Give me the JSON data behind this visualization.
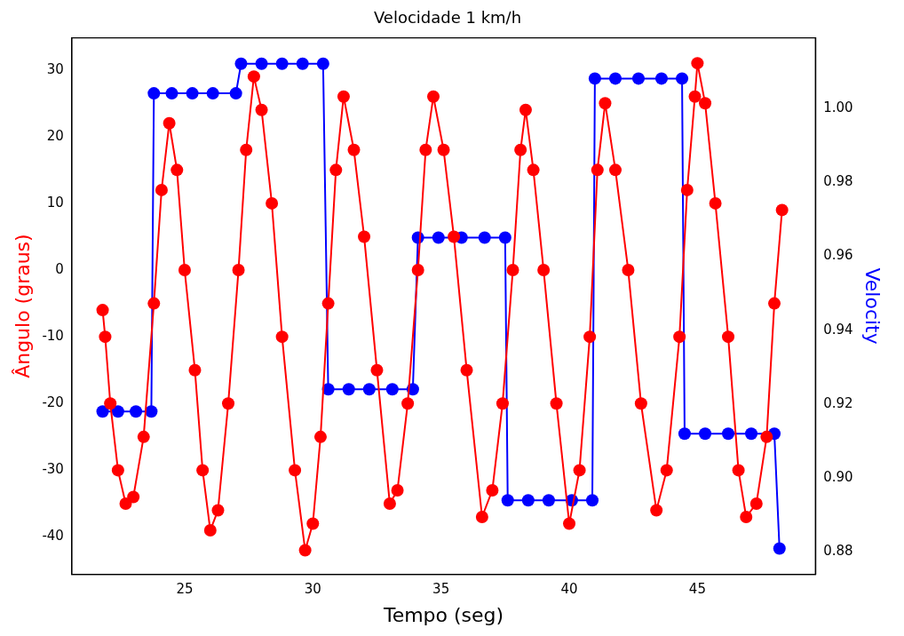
{
  "chart_data": {
    "type": "line",
    "title": "Velocidade 1 km/h",
    "xlabel": "Tempo (seg)",
    "ylabel": "Ângulo (graus)",
    "y2label": "Velocity",
    "xlim": [
      20.6,
      49.6
    ],
    "xticks": [
      25,
      30,
      35,
      40,
      45
    ],
    "ylim": [
      -45.6,
      34.8
    ],
    "yticks": [
      -40,
      -30,
      -20,
      -10,
      0,
      10,
      20,
      30
    ],
    "y2lim": [
      0.874,
      1.019
    ],
    "y2ticks": [
      {
        "value": 0.88,
        "label": "0.88"
      },
      {
        "value": 0.9,
        "label": "0.90"
      },
      {
        "value": 0.92,
        "label": "0.92"
      },
      {
        "value": 0.94,
        "label": "0.94"
      },
      {
        "value": 0.96,
        "label": "0.96"
      },
      {
        "value": 0.98,
        "label": "0.98"
      },
      {
        "value": 1,
        "label": "1.00"
      }
    ],
    "marker": "circle",
    "grid": false,
    "legend": false,
    "series": [
      {
        "color": "#ff0000",
        "axis": "y",
        "x": [
          21.8,
          21.9,
          22.1,
          22.4,
          22.7,
          23.0,
          23.4,
          23.8,
          24.1,
          24.4,
          24.7,
          25.0,
          25.4,
          25.7,
          26.0,
          26.3,
          26.7,
          27.1,
          27.4,
          27.7,
          28.0,
          28.4,
          28.8,
          29.3,
          29.7,
          30.0,
          30.3,
          30.6,
          30.9,
          31.2,
          31.6,
          32.0,
          32.5,
          33.0,
          33.3,
          33.7,
          34.1,
          34.4,
          34.7,
          35.1,
          35.5,
          36.0,
          36.6,
          37.0,
          37.4,
          37.8,
          38.1,
          38.3,
          38.6,
          39.0,
          39.5,
          40.0,
          40.4,
          40.8,
          41.1,
          41.4,
          41.8,
          42.3,
          42.8,
          43.4,
          43.8,
          44.3,
          44.6,
          44.9,
          45.0,
          45.3,
          45.7,
          46.2,
          46.6,
          46.9,
          47.3,
          47.7,
          48.0,
          48.3
        ],
        "values": [
          -6,
          -10,
          -20,
          -30,
          -35,
          -34,
          -25,
          -5,
          12,
          22,
          15,
          0,
          -15,
          -30,
          -39,
          -36,
          -20,
          0,
          18,
          29,
          24,
          10,
          -10,
          -30,
          -42,
          -38,
          -25,
          -5,
          15,
          26,
          18,
          5,
          -15,
          -35,
          -33,
          -20,
          0,
          18,
          26,
          18,
          5,
          -15,
          -37,
          -33,
          -20,
          0,
          18,
          24,
          15,
          0,
          -20,
          -38,
          -30,
          -10,
          15,
          25,
          15,
          0,
          -20,
          -36,
          -30,
          -10,
          12,
          26,
          31,
          25,
          10,
          -10,
          -30,
          -37,
          -35,
          -25,
          -5,
          9
        ]
      },
      {
        "color": "#0000ff",
        "axis": "y2",
        "x": [
          21.8,
          22.4,
          23.1,
          23.7,
          23.8,
          24.5,
          25.3,
          26.1,
          27.0,
          27.2,
          28.0,
          28.8,
          29.6,
          30.4,
          30.6,
          31.4,
          32.2,
          33.1,
          33.9,
          34.1,
          34.9,
          35.8,
          36.7,
          37.5,
          37.6,
          38.4,
          39.2,
          40.1,
          40.9,
          41.0,
          41.8,
          42.7,
          43.6,
          44.4,
          44.5,
          45.3,
          46.2,
          47.1,
          48.0,
          48.2
        ],
        "values": [
          0.918,
          0.918,
          0.918,
          0.918,
          1.004,
          1.004,
          1.004,
          1.004,
          1.004,
          1.012,
          1.012,
          1.012,
          1.012,
          1.012,
          0.924,
          0.924,
          0.924,
          0.924,
          0.924,
          0.965,
          0.965,
          0.965,
          0.965,
          0.965,
          0.894,
          0.894,
          0.894,
          0.894,
          0.894,
          1.008,
          1.008,
          1.008,
          1.008,
          1.008,
          0.912,
          0.912,
          0.912,
          0.912,
          0.912,
          0.881
        ]
      }
    ]
  }
}
